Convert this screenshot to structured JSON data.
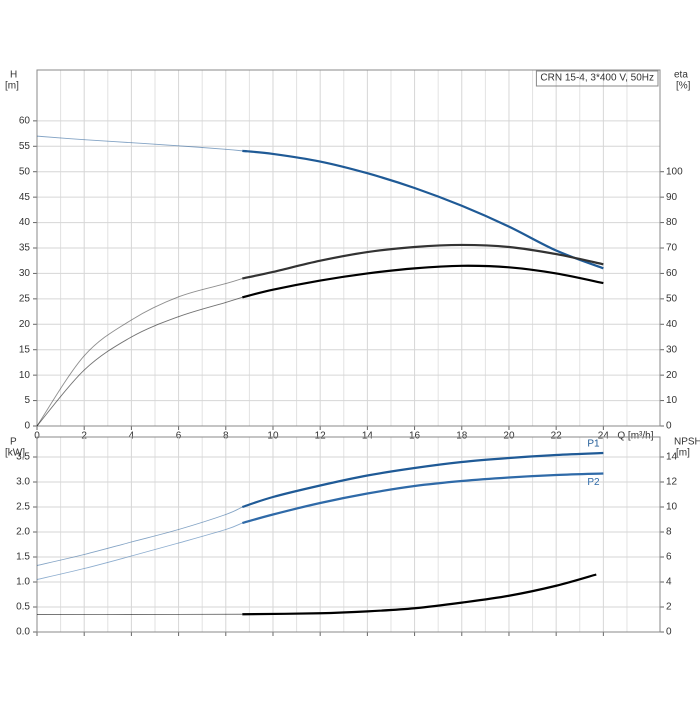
{
  "chart_data": [
    {
      "type": "line",
      "title": "CRN 15-4, 3*400 V, 50Hz",
      "ylabel": "H",
      "yunit": "[m]",
      "y2label": "eta",
      "y2unit": "[%]",
      "xlabel": "Q [m³/h]",
      "xlim": [
        0,
        26.4
      ],
      "xticks": [
        0,
        2,
        4,
        6,
        8,
        10,
        12,
        14,
        16,
        18,
        20,
        22,
        24
      ],
      "ylim": [
        0,
        70
      ],
      "yticks": [
        0,
        5,
        10,
        15,
        20,
        25,
        30,
        35,
        40,
        45,
        50,
        55,
        60
      ],
      "y2lim": [
        0,
        140
      ],
      "y2ticks": [
        0,
        10,
        20,
        30,
        40,
        50,
        60,
        70,
        80,
        90,
        100
      ],
      "grid": true,
      "bold_from_x": 8.7,
      "series": [
        {
          "color": "#1f5a96",
          "x": [
            0,
            2,
            4,
            6,
            8,
            8.7,
            10,
            12,
            14,
            16,
            18,
            20,
            22,
            24
          ],
          "values": [
            57,
            56.3,
            55.7,
            55.1,
            54.4,
            54.1,
            53.5,
            52,
            49.7,
            46.8,
            43.3,
            39.2,
            34.5,
            31
          ]
        },
        {
          "color": "#333333",
          "axis": "y2",
          "x": [
            0,
            2,
            4,
            6,
            8,
            8.7,
            10,
            12,
            14,
            16,
            18,
            20,
            22,
            24
          ],
          "values": [
            0,
            27.6,
            41.7,
            50.8,
            56,
            58,
            60.6,
            65,
            68.4,
            70.4,
            71.2,
            70.4,
            67.6,
            63.6
          ]
        },
        {
          "color": "#000000",
          "axis": "y2",
          "x": [
            0,
            2,
            4,
            6,
            8,
            8.7,
            10,
            12,
            14,
            16,
            18,
            20,
            22,
            24
          ],
          "values": [
            0,
            22,
            35,
            43,
            48.6,
            50.6,
            53.6,
            57.2,
            60,
            62,
            63,
            62.4,
            60,
            56.2
          ]
        }
      ]
    },
    {
      "type": "line",
      "ylabel": "P",
      "yunit": "[kW]",
      "y2label": "NPSH",
      "y2unit": "[m]",
      "xlim": [
        0,
        26.4
      ],
      "xticks": [
        0,
        2,
        4,
        6,
        8,
        10,
        12,
        14,
        16,
        18,
        20,
        22,
        24
      ],
      "ylim": [
        0,
        3.9
      ],
      "yticks": [
        0.0,
        0.5,
        1.0,
        1.5,
        2.0,
        2.5,
        3.0,
        3.5
      ],
      "y2lim": [
        0,
        15.6
      ],
      "y2ticks": [
        0,
        2,
        4,
        6,
        8,
        10,
        12,
        14
      ],
      "grid": true,
      "bold_from_x": 8.7,
      "series": [
        {
          "name": "P1",
          "color": "#1f5a96",
          "x": [
            0,
            2,
            4,
            6,
            8,
            8.7,
            10,
            12,
            14,
            16,
            18,
            20,
            22,
            24
          ],
          "values": [
            1.33,
            1.55,
            1.8,
            2.05,
            2.35,
            2.5,
            2.7,
            2.93,
            3.13,
            3.28,
            3.4,
            3.48,
            3.54,
            3.58
          ]
        },
        {
          "name": "P2",
          "color": "#2f6aa8",
          "x": [
            0,
            2,
            4,
            6,
            8,
            8.7,
            10,
            12,
            14,
            16,
            18,
            20,
            22,
            24
          ],
          "values": [
            1.05,
            1.27,
            1.52,
            1.78,
            2.05,
            2.18,
            2.35,
            2.58,
            2.77,
            2.92,
            3.02,
            3.09,
            3.14,
            3.17
          ]
        },
        {
          "color": "#000000",
          "axis": "y2",
          "x": [
            0,
            4,
            8.7,
            12,
            14,
            16,
            18,
            20,
            22,
            23.7
          ],
          "values": [
            1.4,
            1.4,
            1.42,
            1.5,
            1.65,
            1.9,
            2.35,
            2.9,
            3.7,
            4.6
          ]
        }
      ]
    }
  ]
}
